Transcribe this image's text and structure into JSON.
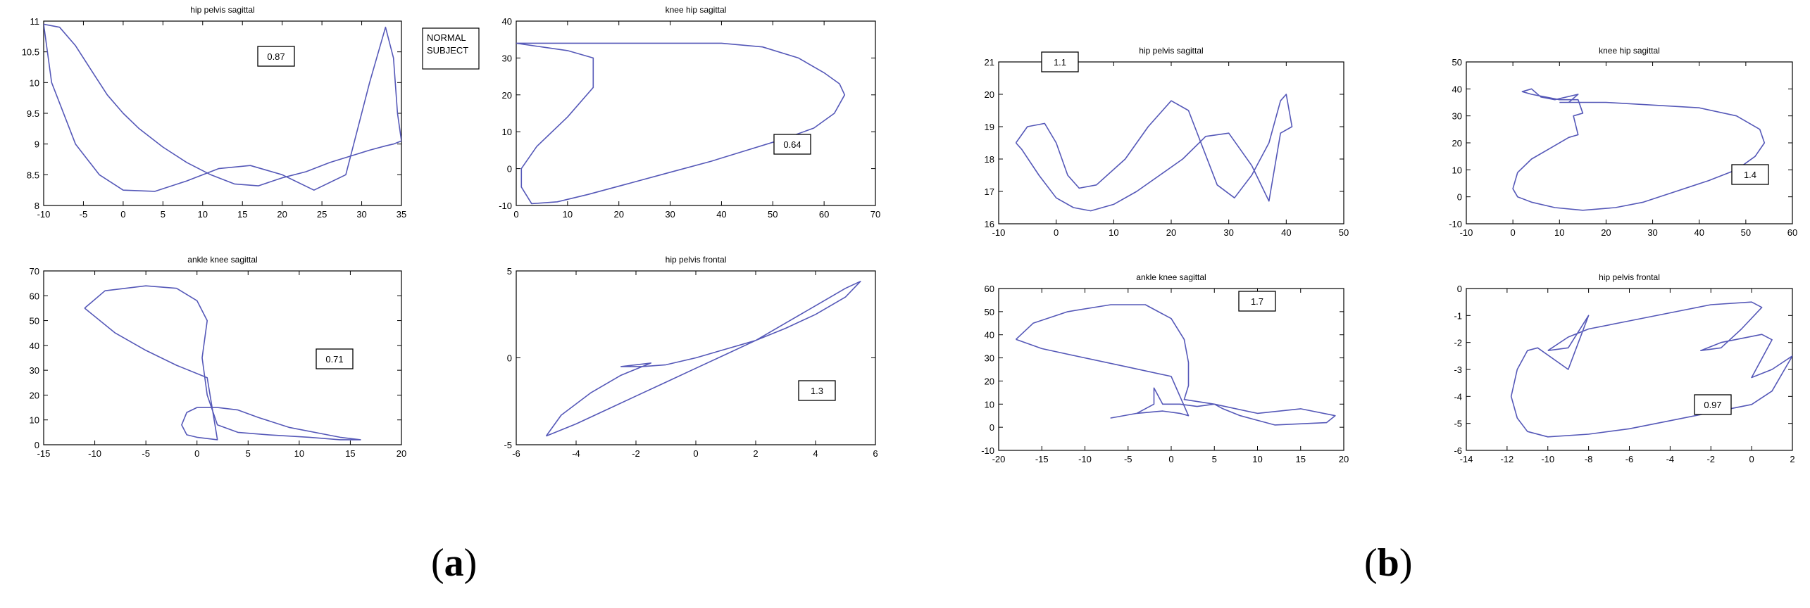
{
  "panels": {
    "a": {
      "label_open": "(",
      "label_letter": "a",
      "label_close": ")",
      "note": "NORMAL\nSUBJECT"
    },
    "b": {
      "label_open": "(",
      "label_letter": "b",
      "label_close": ")"
    }
  },
  "colors": {
    "curve": "#5558b8",
    "axis": "#000000",
    "box": "#000000"
  },
  "chart_data": [
    {
      "id": "a-hip-pelvis-sagittal",
      "panel": "a",
      "type": "line",
      "title": "hip pelvis sagittal",
      "xlim": [
        -10,
        35
      ],
      "ylim": [
        8,
        11
      ],
      "xticks": [
        -10,
        -5,
        0,
        5,
        10,
        15,
        20,
        25,
        30,
        35
      ],
      "yticks": [
        8,
        8.5,
        9,
        9.5,
        10,
        10.5,
        11
      ],
      "ytick_labels": [
        "8",
        "8.5",
        "9",
        "9.5",
        "10",
        "10.5",
        "11"
      ],
      "annotation": "0.87",
      "x": [
        -10,
        -8,
        -6,
        -4,
        -2,
        0,
        2,
        5,
        8,
        11,
        14,
        17,
        20,
        23,
        26,
        29,
        31,
        33,
        34,
        35,
        34.5,
        34,
        33,
        31,
        28,
        24,
        20,
        16,
        12,
        8,
        4,
        0,
        -3,
        -6,
        -9,
        -10
      ],
      "y": [
        10.95,
        10.9,
        10.6,
        10.2,
        9.8,
        9.5,
        9.25,
        8.95,
        8.7,
        8.5,
        8.35,
        8.32,
        8.45,
        8.55,
        8.7,
        8.82,
        8.9,
        8.97,
        9.0,
        9.05,
        9.5,
        10.4,
        10.9,
        10.0,
        8.5,
        8.25,
        8.5,
        8.65,
        8.6,
        8.4,
        8.23,
        8.25,
        8.5,
        9.0,
        10.0,
        10.95
      ]
    },
    {
      "id": "a-knee-hip-sagittal",
      "panel": "a",
      "type": "line",
      "title": "knee hip sagittal",
      "xlim": [
        0,
        70
      ],
      "ylim": [
        -10,
        40
      ],
      "xticks": [
        0,
        10,
        20,
        30,
        40,
        50,
        60,
        70
      ],
      "yticks": [
        -10,
        0,
        10,
        20,
        30,
        40
      ],
      "annotation": "0.64",
      "x": [
        0,
        10,
        20,
        30,
        40,
        48,
        55,
        60,
        63,
        64,
        62,
        58,
        52,
        45,
        38,
        30,
        22,
        14,
        8,
        3,
        1,
        1,
        4,
        10,
        15,
        15,
        10,
        5,
        0
      ],
      "y": [
        34,
        34,
        34,
        34,
        34,
        33,
        30,
        26,
        23,
        20,
        15,
        11,
        8,
        5,
        2,
        -1,
        -4,
        -7,
        -9,
        -9.5,
        -5,
        0,
        6,
        14,
        22,
        30,
        32,
        33,
        34
      ]
    },
    {
      "id": "a-ankle-knee-sagittal",
      "panel": "a",
      "type": "line",
      "title": "ankle knee sagittal",
      "xlim": [
        -15,
        20
      ],
      "ylim": [
        0,
        70
      ],
      "xticks": [
        -15,
        -10,
        -5,
        0,
        5,
        10,
        15,
        20
      ],
      "yticks": [
        0,
        10,
        20,
        30,
        40,
        50,
        60,
        70
      ],
      "annotation": "0.71",
      "x": [
        -11,
        -9,
        -5,
        -2,
        0,
        1,
        0.5,
        1,
        2,
        4,
        7,
        11,
        14,
        16,
        14,
        9,
        6,
        4,
        2,
        0,
        -1,
        -1.5,
        -1,
        0,
        2,
        1,
        -2,
        -5,
        -8,
        -11
      ],
      "y": [
        55,
        62,
        64,
        63,
        58,
        50,
        35,
        20,
        8,
        5,
        4,
        3,
        2,
        2,
        3,
        7,
        11,
        14,
        15,
        15,
        13,
        8,
        4,
        3,
        2,
        27,
        32,
        38,
        45,
        55
      ]
    },
    {
      "id": "a-hip-pelvis-frontal",
      "panel": "a",
      "type": "line",
      "title": "hip pelvis frontal",
      "xlim": [
        -6,
        6
      ],
      "ylim": [
        -5,
        5
      ],
      "xticks": [
        -6,
        -4,
        -2,
        0,
        2,
        4,
        6
      ],
      "yticks": [
        -5,
        0,
        5
      ],
      "annotation": "1.3",
      "x": [
        -5,
        -4,
        -3,
        -2,
        -1,
        0,
        1,
        2,
        3,
        4,
        5,
        5.5,
        5,
        4,
        3,
        2,
        1,
        0,
        -1,
        -1.8,
        -2.5,
        -1.5,
        -2.5,
        -3.5,
        -4.5,
        -5
      ],
      "y": [
        -4.5,
        -3.8,
        -3.0,
        -2.2,
        -1.4,
        -0.6,
        0.2,
        1.0,
        2.0,
        3.0,
        4.0,
        4.4,
        3.5,
        2.5,
        1.7,
        1.0,
        0.5,
        0,
        -0.4,
        -0.5,
        -0.5,
        -0.3,
        -1.0,
        -2.0,
        -3.3,
        -4.5
      ]
    },
    {
      "id": "b-hip-pelvis-sagittal",
      "panel": "b",
      "type": "line",
      "title": "hip pelvis sagittal",
      "xlim": [
        -10,
        50
      ],
      "ylim": [
        16,
        21
      ],
      "xticks": [
        -10,
        0,
        10,
        20,
        30,
        40,
        50
      ],
      "yticks": [
        16,
        17,
        18,
        19,
        20,
        21
      ],
      "annotation": "1.1",
      "x": [
        -7,
        -5,
        -2,
        0,
        2,
        4,
        7,
        12,
        16,
        20,
        23,
        28,
        31,
        34,
        37,
        39,
        40,
        41,
        39,
        37,
        34,
        30,
        26,
        22,
        18,
        14,
        10,
        6,
        3,
        0,
        -3,
        -6,
        -7
      ],
      "y": [
        18.5,
        19.0,
        19.1,
        18.5,
        17.5,
        17.1,
        17.2,
        18.0,
        19.0,
        19.8,
        19.5,
        17.2,
        16.8,
        17.5,
        18.5,
        19.8,
        20.0,
        19.0,
        18.8,
        16.7,
        17.8,
        18.8,
        18.7,
        18.0,
        17.5,
        17.0,
        16.6,
        16.4,
        16.5,
        16.8,
        17.5,
        18.3,
        18.5
      ]
    },
    {
      "id": "b-knee-hip-sagittal",
      "panel": "b",
      "type": "line",
      "title": "knee hip sagittal",
      "xlim": [
        -10,
        60
      ],
      "ylim": [
        -10,
        50
      ],
      "xticks": [
        -10,
        0,
        10,
        20,
        30,
        40,
        50,
        60
      ],
      "yticks": [
        -10,
        0,
        10,
        20,
        30,
        40,
        50
      ],
      "annotation": "1.4",
      "x": [
        10,
        20,
        30,
        40,
        48,
        53,
        54,
        52,
        48,
        42,
        35,
        28,
        22,
        15,
        9,
        4,
        1,
        0,
        1,
        4,
        8,
        12,
        14,
        13,
        15,
        14,
        10,
        7,
        4,
        2,
        4,
        6,
        9,
        14,
        12,
        10
      ],
      "y": [
        35,
        35,
        34,
        33,
        30,
        25,
        20,
        15,
        10,
        6,
        2,
        -2,
        -4,
        -5,
        -4,
        -2,
        0,
        3,
        9,
        14,
        18,
        22,
        23,
        30,
        31,
        36,
        36,
        37,
        38,
        39,
        40,
        37,
        36,
        38,
        35,
        35
      ]
    },
    {
      "id": "b-ankle-knee-sagittal",
      "panel": "b",
      "type": "line",
      "title": "ankle knee sagittal",
      "xlim": [
        -20,
        20
      ],
      "ylim": [
        -10,
        60
      ],
      "xticks": [
        -20,
        -15,
        -10,
        -5,
        0,
        5,
        10,
        15,
        20
      ],
      "yticks": [
        -10,
        0,
        10,
        20,
        30,
        40,
        50,
        60
      ],
      "annotation": "1.7",
      "x": [
        -18,
        -16,
        -12,
        -7,
        -3,
        0,
        1.5,
        2,
        2,
        1.5,
        5,
        10,
        15,
        19,
        18,
        12,
        8,
        6,
        5,
        3,
        1,
        -1,
        -2,
        -2,
        -4,
        -7,
        -4,
        -1,
        1,
        2,
        0,
        -5,
        -10,
        -15,
        -18
      ],
      "y": [
        38,
        45,
        50,
        53,
        53,
        47,
        38,
        28,
        18,
        12,
        10,
        6,
        8,
        5,
        2,
        1,
        5,
        8,
        10,
        9,
        10,
        10,
        17,
        10,
        6,
        4,
        6,
        7,
        6,
        5,
        22,
        26,
        30,
        34,
        38
      ]
    },
    {
      "id": "b-hip-pelvis-frontal",
      "panel": "b",
      "type": "line",
      "title": "hip pelvis frontal",
      "xlim": [
        -14,
        2
      ],
      "ylim": [
        -6,
        0
      ],
      "xticks": [
        -14,
        -12,
        -10,
        -8,
        -6,
        -4,
        -2,
        0,
        2
      ],
      "yticks": [
        -6,
        -5,
        -4,
        -3,
        -2,
        -1,
        0
      ],
      "annotation": "0.97",
      "x": [
        -10,
        -9,
        -8,
        -6,
        -4,
        -2,
        0,
        0.5,
        -0.5,
        -1.5,
        -2.5,
        -1.5,
        0.5,
        1,
        0,
        1,
        2,
        1,
        0,
        -2,
        -4,
        -6,
        -8,
        -10,
        -11,
        -11.5,
        -11.8,
        -11.5,
        -11,
        -10.5,
        -9,
        -8,
        -9,
        -10
      ],
      "y": [
        -2.3,
        -1.8,
        -1.5,
        -1.2,
        -0.9,
        -0.6,
        -0.5,
        -0.7,
        -1.5,
        -2.2,
        -2.3,
        -2.0,
        -1.7,
        -1.9,
        -3.3,
        -3.0,
        -2.5,
        -3.8,
        -4.3,
        -4.6,
        -4.9,
        -5.2,
        -5.4,
        -5.5,
        -5.3,
        -4.8,
        -4.0,
        -3.0,
        -2.3,
        -2.2,
        -3.0,
        -1.0,
        -2.2,
        -2.3
      ]
    }
  ]
}
